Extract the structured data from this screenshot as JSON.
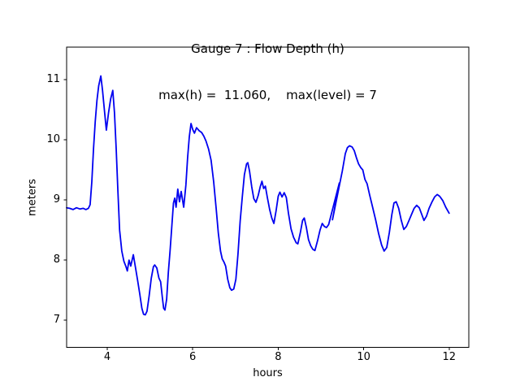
{
  "figure": {
    "background": "#ffffff",
    "text_color": "#000000",
    "spine_color": "#000000"
  },
  "chart_data": {
    "type": "line",
    "title": "Gauge 7 : Flow Depth (h)",
    "subtitle": "max(h) =  11.060,    max(level) = 7",
    "xlabel": "hours",
    "ylabel": "meters",
    "xlim": [
      3.05,
      12.46
    ],
    "ylim": [
      6.55,
      11.54
    ],
    "x_ticks": [
      4,
      6,
      8,
      10,
      12
    ],
    "y_ticks": [
      7,
      8,
      9,
      10,
      11
    ],
    "grid": false,
    "legend_position": "none",
    "line_color": "#0000f0",
    "line_width": 1.8,
    "annotations": {
      "gauge_number": 7,
      "max_h": 11.06,
      "max_level": 7
    },
    "series": [
      {
        "name": "flow-depth",
        "points": [
          [
            3.05,
            8.87
          ],
          [
            3.12,
            8.86
          ],
          [
            3.2,
            8.84
          ],
          [
            3.28,
            8.87
          ],
          [
            3.36,
            8.85
          ],
          [
            3.44,
            8.86
          ],
          [
            3.5,
            8.84
          ],
          [
            3.56,
            8.86
          ],
          [
            3.6,
            8.92
          ],
          [
            3.64,
            9.3
          ],
          [
            3.68,
            9.85
          ],
          [
            3.72,
            10.3
          ],
          [
            3.76,
            10.65
          ],
          [
            3.8,
            10.9
          ],
          [
            3.85,
            11.06
          ],
          [
            3.89,
            10.82
          ],
          [
            3.94,
            10.45
          ],
          [
            3.98,
            10.16
          ],
          [
            4.03,
            10.45
          ],
          [
            4.08,
            10.68
          ],
          [
            4.13,
            10.82
          ],
          [
            4.17,
            10.45
          ],
          [
            4.21,
            9.85
          ],
          [
            4.25,
            9.15
          ],
          [
            4.29,
            8.5
          ],
          [
            4.34,
            8.15
          ],
          [
            4.39,
            7.98
          ],
          [
            4.44,
            7.89
          ],
          [
            4.47,
            7.82
          ],
          [
            4.51,
            8.0
          ],
          [
            4.55,
            7.9
          ],
          [
            4.61,
            8.09
          ],
          [
            4.66,
            7.88
          ],
          [
            4.71,
            7.67
          ],
          [
            4.76,
            7.44
          ],
          [
            4.81,
            7.2
          ],
          [
            4.85,
            7.1
          ],
          [
            4.89,
            7.09
          ],
          [
            4.93,
            7.15
          ],
          [
            4.98,
            7.4
          ],
          [
            5.03,
            7.7
          ],
          [
            5.08,
            7.89
          ],
          [
            5.11,
            7.92
          ],
          [
            5.16,
            7.87
          ],
          [
            5.21,
            7.7
          ],
          [
            5.25,
            7.64
          ],
          [
            5.29,
            7.38
          ],
          [
            5.32,
            7.2
          ],
          [
            5.35,
            7.17
          ],
          [
            5.39,
            7.35
          ],
          [
            5.43,
            7.8
          ],
          [
            5.47,
            8.15
          ],
          [
            5.51,
            8.55
          ],
          [
            5.55,
            8.95
          ],
          [
            5.58,
            9.03
          ],
          [
            5.61,
            8.88
          ],
          [
            5.65,
            9.18
          ],
          [
            5.69,
            8.97
          ],
          [
            5.73,
            9.14
          ],
          [
            5.79,
            8.88
          ],
          [
            5.84,
            9.25
          ],
          [
            5.88,
            9.7
          ],
          [
            5.92,
            10.05
          ],
          [
            5.96,
            10.27
          ],
          [
            6.0,
            10.17
          ],
          [
            6.04,
            10.11
          ],
          [
            6.09,
            10.2
          ],
          [
            6.15,
            10.15
          ],
          [
            6.21,
            10.12
          ],
          [
            6.26,
            10.06
          ],
          [
            6.31,
            9.98
          ],
          [
            6.37,
            9.85
          ],
          [
            6.43,
            9.66
          ],
          [
            6.49,
            9.3
          ],
          [
            6.55,
            8.85
          ],
          [
            6.6,
            8.45
          ],
          [
            6.65,
            8.15
          ],
          [
            6.69,
            8.02
          ],
          [
            6.73,
            7.97
          ],
          [
            6.77,
            7.9
          ],
          [
            6.82,
            7.68
          ],
          [
            6.87,
            7.54
          ],
          [
            6.91,
            7.5
          ],
          [
            6.96,
            7.52
          ],
          [
            7.01,
            7.68
          ],
          [
            7.06,
            8.1
          ],
          [
            7.11,
            8.65
          ],
          [
            7.16,
            9.05
          ],
          [
            7.21,
            9.42
          ],
          [
            7.26,
            9.6
          ],
          [
            7.29,
            9.62
          ],
          [
            7.33,
            9.48
          ],
          [
            7.38,
            9.22
          ],
          [
            7.43,
            9.02
          ],
          [
            7.48,
            8.96
          ],
          [
            7.53,
            9.07
          ],
          [
            7.58,
            9.22
          ],
          [
            7.62,
            9.31
          ],
          [
            7.66,
            9.19
          ],
          [
            7.7,
            9.23
          ],
          [
            7.75,
            9.03
          ],
          [
            7.8,
            8.84
          ],
          [
            7.85,
            8.7
          ],
          [
            7.9,
            8.61
          ],
          [
            7.95,
            8.82
          ],
          [
            8.0,
            9.06
          ],
          [
            8.04,
            9.13
          ],
          [
            8.09,
            9.05
          ],
          [
            8.14,
            9.12
          ],
          [
            8.19,
            9.04
          ],
          [
            8.24,
            8.78
          ],
          [
            8.3,
            8.52
          ],
          [
            8.36,
            8.38
          ],
          [
            8.42,
            8.29
          ],
          [
            8.46,
            8.27
          ],
          [
            8.52,
            8.46
          ],
          [
            8.57,
            8.66
          ],
          [
            8.61,
            8.7
          ],
          [
            8.66,
            8.54
          ],
          [
            8.71,
            8.34
          ],
          [
            8.76,
            8.24
          ],
          [
            8.81,
            8.18
          ],
          [
            8.86,
            8.16
          ],
          [
            8.92,
            8.32
          ],
          [
            8.98,
            8.5
          ],
          [
            9.03,
            8.61
          ],
          [
            9.08,
            8.56
          ],
          [
            9.13,
            8.54
          ],
          [
            9.18,
            8.59
          ],
          [
            9.43,
            9.28
          ],
          [
            9.27,
            8.67
          ],
          [
            9.5,
            9.48
          ],
          [
            9.57,
            9.77
          ],
          [
            9.62,
            9.87
          ],
          [
            9.67,
            9.9
          ],
          [
            9.73,
            9.88
          ],
          [
            9.78,
            9.82
          ],
          [
            9.83,
            9.7
          ],
          [
            9.88,
            9.6
          ],
          [
            9.93,
            9.54
          ],
          [
            9.98,
            9.5
          ],
          [
            10.03,
            9.34
          ],
          [
            10.08,
            9.27
          ],
          [
            10.14,
            9.08
          ],
          [
            10.21,
            8.88
          ],
          [
            10.28,
            8.67
          ],
          [
            10.35,
            8.44
          ],
          [
            10.42,
            8.25
          ],
          [
            10.48,
            8.15
          ],
          [
            10.54,
            8.21
          ],
          [
            10.6,
            8.46
          ],
          [
            10.66,
            8.76
          ],
          [
            10.71,
            8.95
          ],
          [
            10.76,
            8.97
          ],
          [
            10.82,
            8.86
          ],
          [
            10.88,
            8.66
          ],
          [
            10.94,
            8.51
          ],
          [
            11.0,
            8.56
          ],
          [
            11.06,
            8.66
          ],
          [
            11.12,
            8.76
          ],
          [
            11.18,
            8.86
          ],
          [
            11.24,
            8.91
          ],
          [
            11.3,
            8.87
          ],
          [
            11.36,
            8.76
          ],
          [
            11.41,
            8.66
          ],
          [
            11.47,
            8.73
          ],
          [
            11.53,
            8.86
          ],
          [
            11.6,
            8.97
          ],
          [
            11.66,
            9.05
          ],
          [
            11.72,
            9.09
          ],
          [
            11.78,
            9.06
          ],
          [
            11.85,
            8.99
          ],
          [
            11.92,
            8.88
          ],
          [
            12.0,
            8.78
          ]
        ]
      }
    ]
  }
}
